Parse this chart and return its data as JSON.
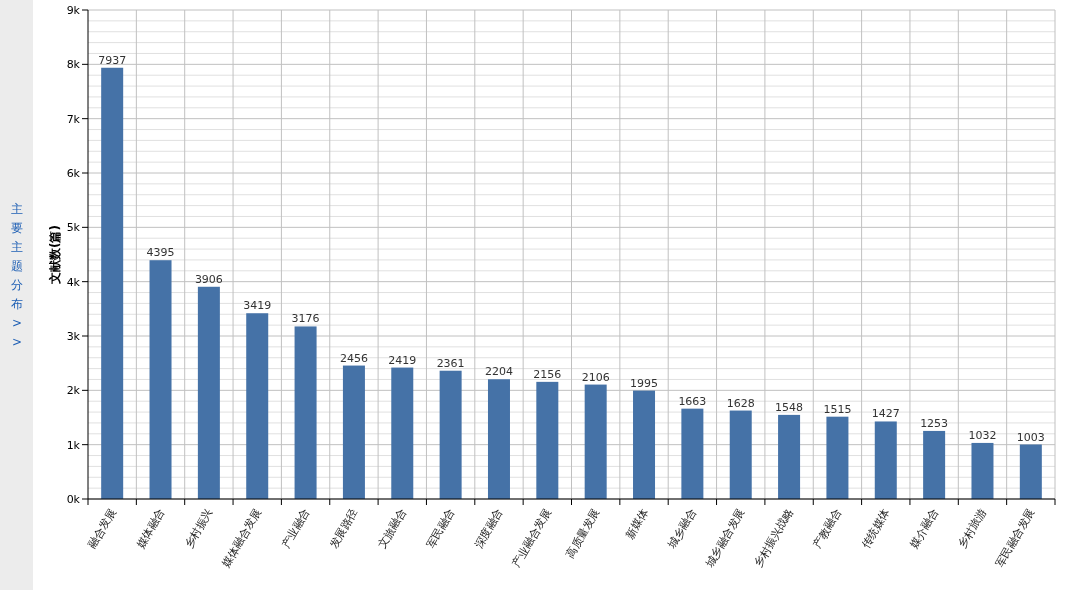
{
  "chart_data": {
    "type": "bar",
    "ylabel": "文献数(篇)",
    "annotations": [
      "主要主题分布 >>"
    ],
    "categories": [
      "融合发展",
      "媒体融合",
      "乡村振兴",
      "媒体融合发展",
      "产业融合",
      "发展路径",
      "文旅融合",
      "军民融合",
      "深度融合",
      "产业融合发展",
      "高质量发展",
      "新媒体",
      "城乡融合",
      "城乡融合发展",
      "乡村振兴战略",
      "产教融合",
      "传统媒体",
      "媒介融合",
      "乡村旅游",
      "军民融合发展"
    ],
    "values": [
      7937,
      4395,
      3906,
      3419,
      3176,
      2456,
      2419,
      2361,
      2204,
      2156,
      2106,
      1995,
      1663,
      1628,
      1548,
      1515,
      1427,
      1253,
      1032,
      1003
    ],
    "color": "#4572a7",
    "ylim": [
      0,
      9000
    ],
    "yticks": [
      {
        "value": 0,
        "label": "0k"
      },
      {
        "value": 1000,
        "label": "1k"
      },
      {
        "value": 2000,
        "label": "2k"
      },
      {
        "value": 3000,
        "label": "3k"
      },
      {
        "value": 4000,
        "label": "4k"
      },
      {
        "value": 5000,
        "label": "5k"
      },
      {
        "value": 6000,
        "label": "6k"
      },
      {
        "value": 7000,
        "label": "7k"
      },
      {
        "value": 8000,
        "label": "8k"
      },
      {
        "value": 9000,
        "label": "9k"
      }
    ],
    "grid": true,
    "data_labels": true
  }
}
